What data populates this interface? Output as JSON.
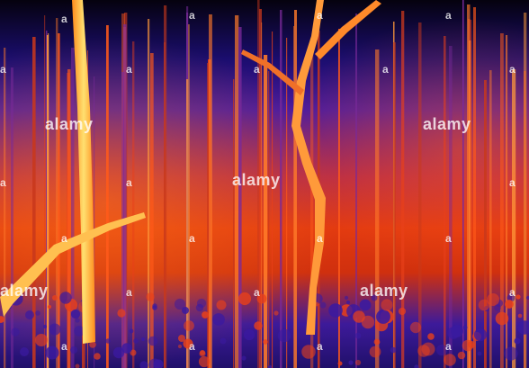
{
  "watermarks": {
    "brand": "alamy",
    "small_mark": "a"
  },
  "colors": {
    "sky": "#05020e",
    "cold": "#2a18a0",
    "mid": "#e23a10",
    "hot": "#ffd040"
  }
}
